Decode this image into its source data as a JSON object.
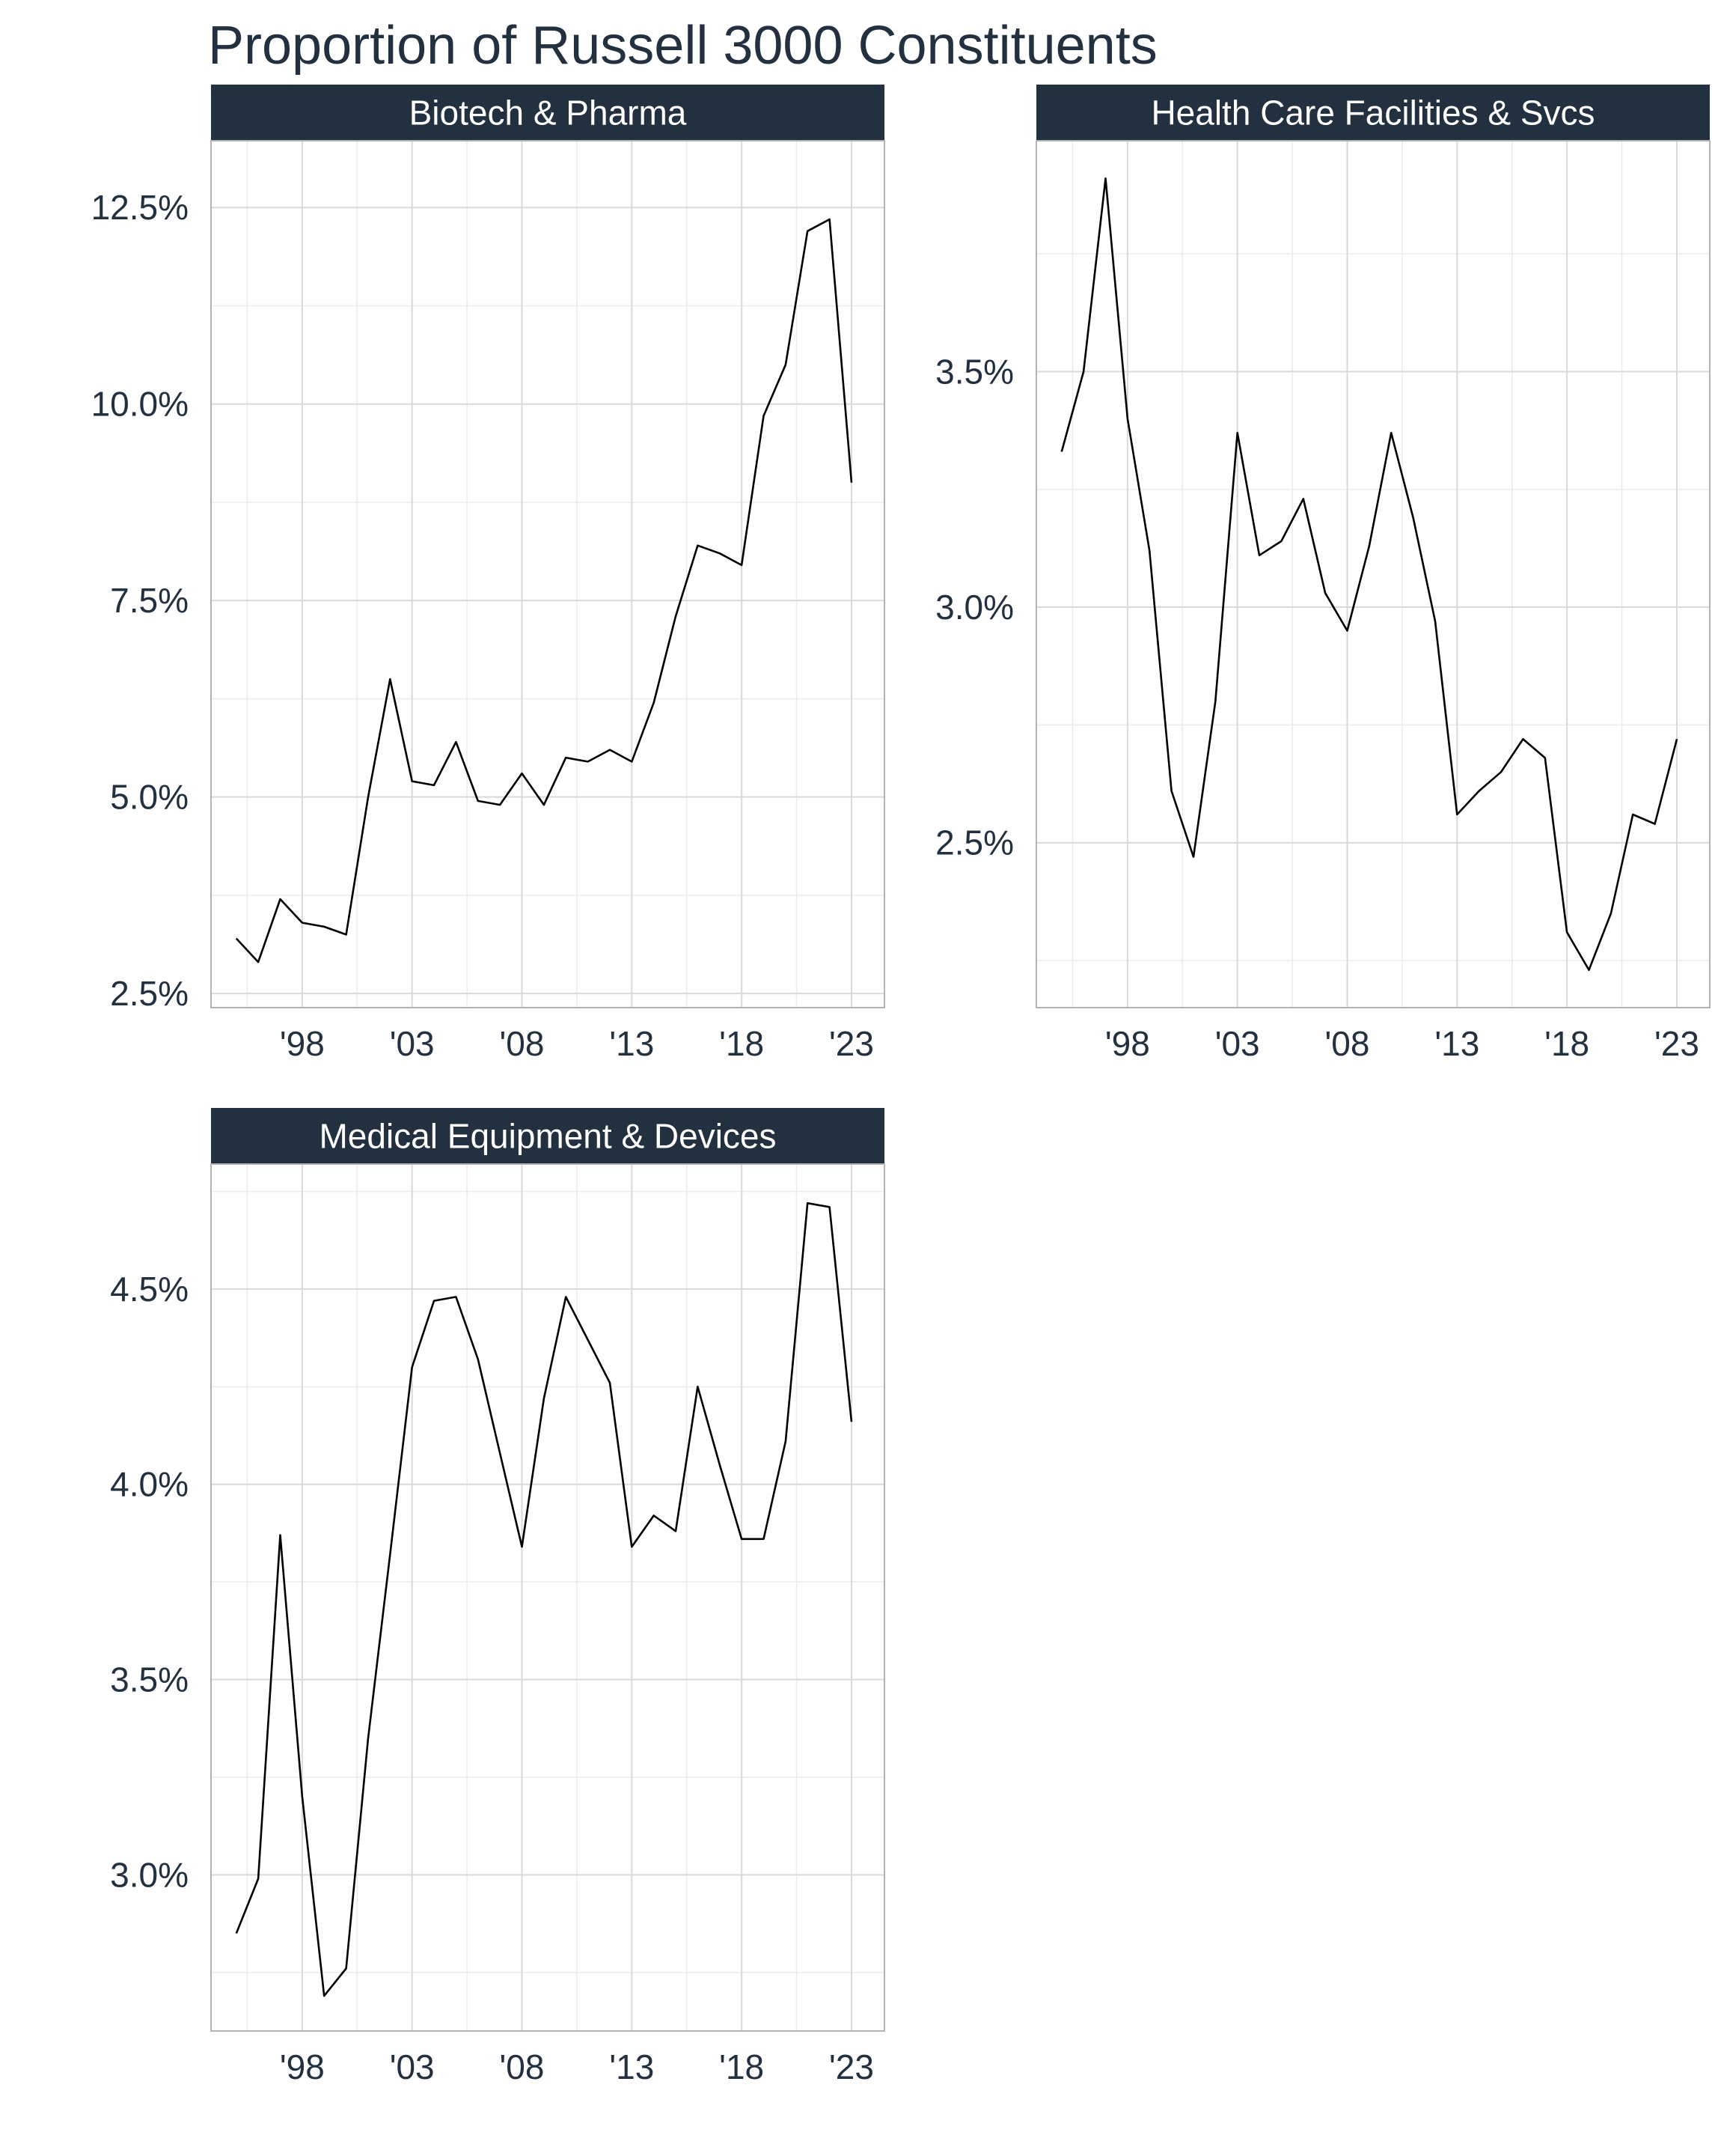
{
  "title": "Proportion of Russell 3000 Constituents",
  "colors": {
    "strip": "#22303f",
    "line": "#000000",
    "text": "#22303f"
  },
  "chart_data": [
    {
      "type": "line",
      "panel": "Biotech & Pharma",
      "x": [
        1995,
        1996,
        1997,
        1998,
        1999,
        2000,
        2001,
        2002,
        2003,
        2004,
        2005,
        2006,
        2007,
        2008,
        2009,
        2010,
        2011,
        2012,
        2013,
        2014,
        2015,
        2016,
        2017,
        2018,
        2019,
        2020,
        2021,
        2022,
        2023
      ],
      "values": [
        3.2,
        2.9,
        3.7,
        3.4,
        3.35,
        3.25,
        5.0,
        6.5,
        5.2,
        5.15,
        5.7,
        4.95,
        4.9,
        5.3,
        4.9,
        5.5,
        5.45,
        5.6,
        5.45,
        6.2,
        7.3,
        8.2,
        8.1,
        7.95,
        9.85,
        10.5,
        12.2,
        12.35,
        9.0
      ],
      "xticks": [
        "'98",
        "'03",
        "'08",
        "'13",
        "'18",
        "'23"
      ],
      "xtick_values": [
        1998,
        2003,
        2008,
        2013,
        2018,
        2023
      ],
      "yticks": [
        "2.5%",
        "5.0%",
        "7.5%",
        "10.0%",
        "12.5%"
      ],
      "ytick_values": [
        2.5,
        5.0,
        7.5,
        10.0,
        12.5
      ],
      "xlim": [
        1993.85,
        2024.5
      ],
      "ylim": [
        2.32,
        13.35
      ]
    },
    {
      "type": "line",
      "panel": "Health Care Facilities & Svcs",
      "x": [
        1995,
        1996,
        1997,
        1998,
        1999,
        2000,
        2001,
        2002,
        2003,
        2004,
        2005,
        2006,
        2007,
        2008,
        2009,
        2010,
        2011,
        2012,
        2013,
        2014,
        2015,
        2016,
        2017,
        2018,
        2019,
        2020,
        2021,
        2022,
        2023
      ],
      "values": [
        3.33,
        3.5,
        3.91,
        3.4,
        3.12,
        2.61,
        2.47,
        2.8,
        3.37,
        3.11,
        3.14,
        3.23,
        3.03,
        2.95,
        3.13,
        3.37,
        3.19,
        2.97,
        2.56,
        2.61,
        2.65,
        2.72,
        2.68,
        2.31,
        2.23,
        2.35,
        2.56,
        2.54,
        2.72
      ],
      "xticks": [
        "'98",
        "'03",
        "'08",
        "'13",
        "'18",
        "'23"
      ],
      "xtick_values": [
        1998,
        2003,
        2008,
        2013,
        2018,
        2023
      ],
      "yticks": [
        "2.5%",
        "3.0%",
        "3.5%"
      ],
      "ytick_values": [
        2.5,
        3.0,
        3.5
      ],
      "xlim": [
        1993.85,
        2024.5
      ],
      "ylim": [
        2.15,
        3.99
      ]
    },
    {
      "type": "line",
      "panel": "Medical Equipment & Devices",
      "x": [
        1995,
        1996,
        1997,
        1998,
        1999,
        2000,
        2001,
        2002,
        2003,
        2004,
        2005,
        2006,
        2007,
        2008,
        2009,
        2010,
        2011,
        2012,
        2013,
        2014,
        2015,
        2016,
        2017,
        2018,
        2019,
        2020,
        2021,
        2022,
        2023
      ],
      "values": [
        2.85,
        2.99,
        3.87,
        3.2,
        2.69,
        2.76,
        3.35,
        3.82,
        4.3,
        4.47,
        4.48,
        4.32,
        4.08,
        3.84,
        4.22,
        4.48,
        4.37,
        4.26,
        3.84,
        3.92,
        3.88,
        4.25,
        4.05,
        3.86,
        3.86,
        4.11,
        4.72,
        4.71,
        4.16
      ],
      "xticks": [
        "'98",
        "'03",
        "'08",
        "'13",
        "'18",
        "'23"
      ],
      "xtick_values": [
        1998,
        2003,
        2008,
        2013,
        2018,
        2023
      ],
      "yticks": [
        "3.0%",
        "3.5%",
        "4.0%",
        "4.5%"
      ],
      "ytick_values": [
        3.0,
        3.5,
        4.0,
        4.5
      ],
      "xlim": [
        1993.85,
        2024.5
      ],
      "ylim": [
        2.6,
        4.82
      ]
    }
  ]
}
